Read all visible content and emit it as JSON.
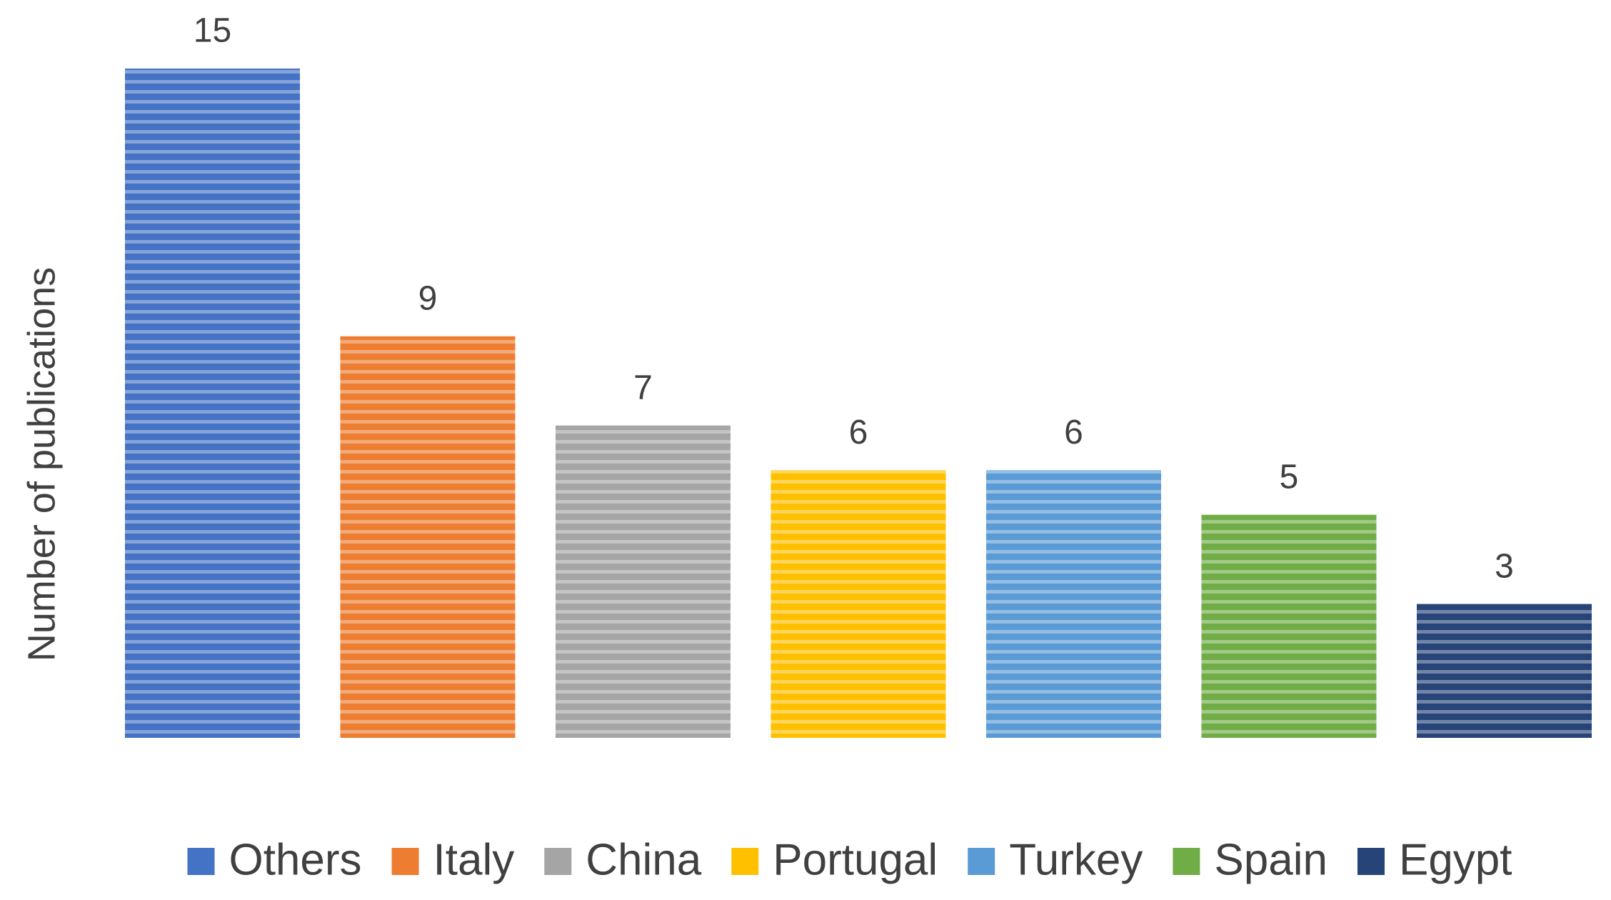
{
  "chart_data": {
    "type": "bar",
    "y_label": "Number of publications",
    "series": [
      {
        "name": "Others",
        "color": "#4472c4",
        "values": [
          15
        ]
      },
      {
        "name": "Italy",
        "color": "#ed7d31",
        "values": [
          9
        ]
      },
      {
        "name": "China",
        "color": "#a5a5a5",
        "values": [
          7
        ]
      },
      {
        "name": "Portugal",
        "color": "#ffc000",
        "values": [
          6
        ]
      },
      {
        "name": "Turkey",
        "color": "#5b9bd5",
        "values": [
          6
        ]
      },
      {
        "name": "Spain",
        "color": "#70ad47",
        "values": [
          5
        ]
      },
      {
        "name": "Egypt",
        "color": "#264478",
        "values": [
          3
        ]
      }
    ],
    "ylim": [
      0,
      15
    ],
    "legend": "bottom",
    "data_labels": true
  }
}
